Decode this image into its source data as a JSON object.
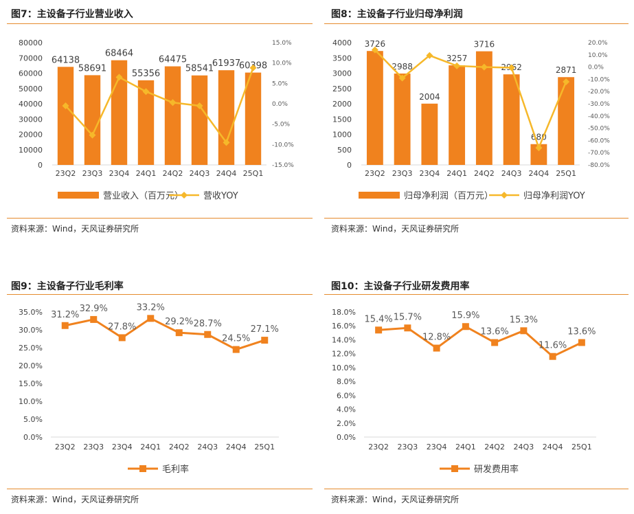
{
  "colors": {
    "bar": "#F0821E",
    "yoy_line": "#F6B82A",
    "line": "#F0821E",
    "rule": "#E58A2C"
  },
  "charts": [
    {
      "figure_title": "图7：主设备子行业营业收入",
      "source": "资料来源：Wind，天风证券研究所",
      "legend": [
        "营业收入（百万元）",
        "营收YOY"
      ],
      "y_ticks": [
        "80000",
        "70000",
        "60000",
        "50000",
        "40000",
        "30000",
        "20000",
        "10000",
        "0"
      ],
      "y2_ticks": [
        "15.0%",
        "10.0%",
        "5.0%",
        "0.0%",
        "-5.0%",
        "-10.0%",
        "-15.0%"
      ],
      "bar_labels": [
        "64138",
        "58691",
        "68464",
        "55356",
        "64475",
        "58541",
        "61937",
        "60398"
      ]
    },
    {
      "figure_title": "图8：主设备子行业归母净利润",
      "source": "资料来源：Wind，天风证券研究所",
      "legend": [
        "归母净利润（百万元）",
        "归母净利润YOY"
      ],
      "y_ticks": [
        "4000",
        "3500",
        "3000",
        "2500",
        "2000",
        "1500",
        "1000",
        "500",
        "0"
      ],
      "y2_ticks": [
        "20.0%",
        "10.0%",
        "0.0%",
        "-10.0%",
        "-20.0%",
        "-30.0%",
        "-40.0%",
        "-50.0%",
        "-60.0%",
        "-70.0%",
        "-80.0%"
      ],
      "bar_labels": [
        "3726",
        "2988",
        "2004",
        "3257",
        "3716",
        "2962",
        "680",
        "2871"
      ]
    },
    {
      "figure_title": "图9：主设备子行业毛利率",
      "source": "资料来源：Wind，天风证券研究所",
      "legend": [
        "毛利率"
      ],
      "y_ticks": [
        "35.0%",
        "30.0%",
        "25.0%",
        "20.0%",
        "15.0%",
        "10.0%",
        "5.0%",
        "0.0%"
      ],
      "point_labels": [
        "31.2%",
        "32.9%",
        "27.8%",
        "33.2%",
        "29.2%",
        "28.7%",
        "24.5%",
        "27.1%"
      ]
    },
    {
      "figure_title": "图10：主设备子行业研发费用率",
      "source": "资料来源：Wind，天风证券研究所",
      "legend": [
        "研发费用率"
      ],
      "y_ticks": [
        "18.0%",
        "16.0%",
        "14.0%",
        "12.0%",
        "10.0%",
        "8.0%",
        "6.0%",
        "4.0%",
        "2.0%",
        "0.0%"
      ],
      "point_labels": [
        "15.4%",
        "15.7%",
        "12.8%",
        "15.9%",
        "13.6%",
        "15.3%",
        "11.6%",
        "13.6%"
      ]
    }
  ],
  "chart_data": [
    {
      "type": "bar",
      "categories": [
        "23Q2",
        "23Q3",
        "23Q4",
        "24Q1",
        "24Q2",
        "24Q3",
        "24Q4",
        "25Q1"
      ],
      "series": [
        {
          "name": "营业收入（百万元）",
          "type": "bar",
          "axis": "left",
          "values": [
            64138,
            58691,
            68464,
            55356,
            64475,
            58541,
            61937,
            60398
          ]
        },
        {
          "name": "营收YOY",
          "type": "line",
          "axis": "right",
          "values": [
            -0.5,
            -7.7,
            6.5,
            3.0,
            0.3,
            -0.5,
            -9.5,
            8.8
          ]
        }
      ],
      "ylim": [
        0,
        80000
      ],
      "y2lim": [
        -15,
        15
      ],
      "legend": "bottom"
    },
    {
      "type": "bar",
      "categories": [
        "23Q2",
        "23Q3",
        "23Q4",
        "24Q1",
        "24Q2",
        "24Q3",
        "24Q4",
        "25Q1"
      ],
      "series": [
        {
          "name": "归母净利润（百万元）",
          "type": "bar",
          "axis": "left",
          "values": [
            3726,
            2988,
            2004,
            3257,
            3716,
            2962,
            680,
            2871
          ]
        },
        {
          "name": "归母净利润YOY",
          "type": "line",
          "axis": "right",
          "values": [
            14.0,
            -9.0,
            9.5,
            1.0,
            0.0,
            -0.5,
            -66.0,
            -12.0
          ]
        }
      ],
      "ylim": [
        0,
        4000
      ],
      "y2lim": [
        -80,
        20
      ],
      "legend": "bottom"
    },
    {
      "type": "line",
      "categories": [
        "23Q2",
        "23Q3",
        "23Q4",
        "24Q1",
        "24Q2",
        "24Q3",
        "24Q4",
        "25Q1"
      ],
      "series": [
        {
          "name": "毛利率",
          "values": [
            31.2,
            32.9,
            27.8,
            33.2,
            29.2,
            28.7,
            24.5,
            27.1
          ]
        }
      ],
      "ylim": [
        0,
        35
      ],
      "legend": "bottom"
    },
    {
      "type": "line",
      "categories": [
        "23Q2",
        "23Q3",
        "23Q4",
        "24Q1",
        "24Q2",
        "24Q3",
        "24Q4",
        "25Q1"
      ],
      "series": [
        {
          "name": "研发费用率",
          "values": [
            15.4,
            15.7,
            12.8,
            15.9,
            13.6,
            15.3,
            11.6,
            13.6
          ]
        }
      ],
      "ylim": [
        0,
        18
      ],
      "legend": "bottom"
    }
  ]
}
